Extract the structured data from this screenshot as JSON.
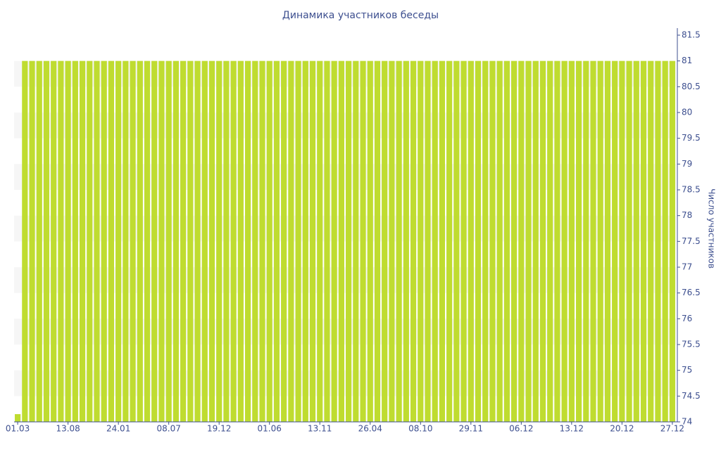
{
  "chart_data": {
    "type": "bar",
    "title": "Динамика участников беседы",
    "y_axis_label": "Число участников",
    "categories": [
      "01.03",
      null,
      null,
      null,
      null,
      null,
      null,
      "13.08",
      null,
      null,
      null,
      null,
      null,
      null,
      "24.01",
      null,
      null,
      null,
      null,
      null,
      null,
      "08.07",
      null,
      null,
      null,
      null,
      null,
      null,
      "19.12",
      null,
      null,
      null,
      null,
      null,
      null,
      "01.06",
      null,
      null,
      null,
      null,
      null,
      null,
      "13.11",
      null,
      null,
      null,
      null,
      null,
      null,
      "26.04",
      null,
      null,
      null,
      null,
      null,
      null,
      "08.10",
      null,
      null,
      null,
      null,
      null,
      null,
      "29.11",
      null,
      null,
      null,
      null,
      null,
      null,
      "06.12",
      null,
      null,
      null,
      null,
      null,
      null,
      "13.12",
      null,
      null,
      null,
      null,
      null,
      null,
      "20.12",
      null,
      null,
      null,
      null,
      null,
      null,
      "27.12"
    ],
    "values": [
      74.15,
      81,
      81,
      81,
      81,
      81,
      81,
      81,
      81,
      81,
      81,
      81,
      81,
      81,
      81,
      81,
      81,
      81,
      81,
      81,
      81,
      81,
      81,
      81,
      81,
      81,
      81,
      81,
      81,
      81,
      81,
      81,
      81,
      81,
      81,
      81,
      81,
      81,
      81,
      81,
      81,
      81,
      81,
      81,
      81,
      81,
      81,
      81,
      81,
      81,
      81,
      81,
      81,
      81,
      81,
      81,
      81,
      81,
      81,
      81,
      81,
      81,
      81,
      81,
      81,
      81,
      81,
      81,
      81,
      81,
      81,
      81,
      81,
      81,
      81,
      81,
      81,
      81,
      81,
      81,
      81,
      81,
      81,
      81,
      81,
      81,
      81,
      81,
      81,
      81,
      81,
      81
    ],
    "color": "#bfdc30",
    "ylim": [
      74,
      81.5
    ],
    "yticks": [
      74,
      74.5,
      75,
      75.5,
      76,
      76.5,
      77,
      77.5,
      78,
      78.5,
      79,
      79.5,
      80,
      80.5,
      81,
      81.5
    ],
    "y_axis_side": "right",
    "grid": false
  }
}
